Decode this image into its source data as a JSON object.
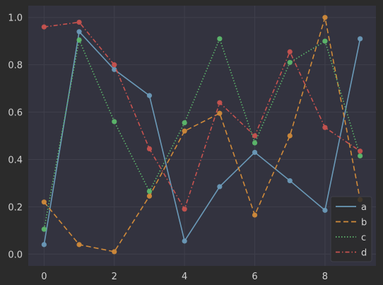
{
  "chart_data": {
    "type": "line",
    "title": "",
    "xlabel": "",
    "ylabel": "",
    "x": [
      0,
      1,
      2,
      3,
      4,
      5,
      6,
      7,
      8,
      9
    ],
    "xlim": [
      -0.45,
      9.45
    ],
    "ylim": [
      -0.05,
      1.05
    ],
    "xticks": [
      0,
      2,
      4,
      6,
      8
    ],
    "yticks": [
      0.0,
      0.2,
      0.4,
      0.6,
      0.8,
      1.0
    ],
    "xtick_labels": [
      "0",
      "2",
      "4",
      "6",
      "8"
    ],
    "ytick_labels": [
      "0.0",
      "0.2",
      "0.4",
      "0.6",
      "0.8",
      "1.0"
    ],
    "grid": true,
    "legend_position": "bottom-right",
    "series": [
      {
        "name": "a",
        "style": "solid",
        "color": "#6b9ab8",
        "values": [
          0.04,
          0.94,
          0.78,
          0.67,
          0.055,
          0.285,
          0.43,
          0.31,
          0.185,
          0.91
        ]
      },
      {
        "name": "b",
        "style": "dashed",
        "color": "#d08a3a",
        "values": [
          0.22,
          0.04,
          0.01,
          0.245,
          0.52,
          0.595,
          0.165,
          0.5,
          1.0,
          0.23
        ]
      },
      {
        "name": "c",
        "style": "dotted",
        "color": "#5db86c",
        "values": [
          0.105,
          0.905,
          0.56,
          0.265,
          0.555,
          0.91,
          0.47,
          0.81,
          0.9,
          0.415
        ]
      },
      {
        "name": "d",
        "style": "dashdot",
        "color": "#c8534f",
        "values": [
          0.96,
          0.98,
          0.8,
          0.445,
          0.19,
          0.64,
          0.5,
          0.855,
          0.535,
          0.435
        ]
      }
    ]
  },
  "colors": {
    "figure_bg": "#2b2b2b",
    "axes_bg": "#33333f",
    "grid": "#3f3f4b",
    "tick_text": "#d2d2d2"
  }
}
